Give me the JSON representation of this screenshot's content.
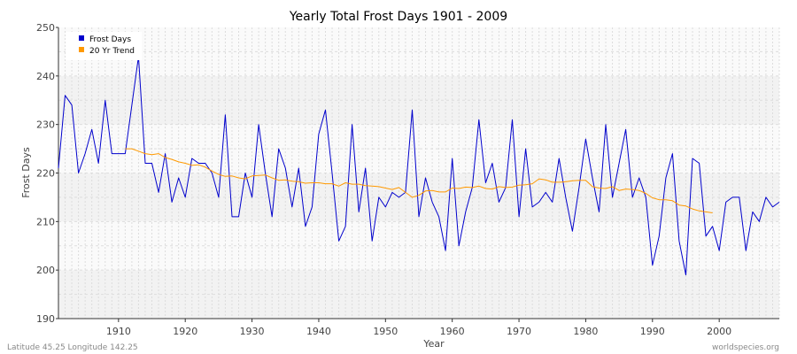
{
  "chart_data": {
    "type": "line",
    "title": "Yearly Total Frost Days 1901 - 2009",
    "xlabel": "Year",
    "ylabel": "Frost Days",
    "xlim": [
      1901,
      2009
    ],
    "ylim": [
      190,
      250
    ],
    "x_ticks": [
      1910,
      1920,
      1930,
      1940,
      1950,
      1960,
      1970,
      1980,
      1990,
      2000
    ],
    "y_ticks": [
      190,
      200,
      210,
      220,
      230,
      240,
      250
    ],
    "legend": {
      "placement": "top-left",
      "entries": [
        "Frost Days",
        "20 Yr Trend"
      ]
    },
    "series": [
      {
        "name": "Frost Days",
        "color": "#0000cc",
        "x": [
          1901,
          1902,
          1903,
          1904,
          1905,
          1906,
          1907,
          1908,
          1909,
          1910,
          1911,
          1912,
          1913,
          1914,
          1915,
          1916,
          1917,
          1918,
          1919,
          1920,
          1921,
          1922,
          1923,
          1924,
          1925,
          1926,
          1927,
          1928,
          1929,
          1930,
          1931,
          1932,
          1933,
          1934,
          1935,
          1936,
          1937,
          1938,
          1939,
          1940,
          1941,
          1942,
          1943,
          1944,
          1945,
          1946,
          1947,
          1948,
          1949,
          1950,
          1951,
          1952,
          1953,
          1954,
          1955,
          1956,
          1957,
          1958,
          1959,
          1960,
          1961,
          1962,
          1963,
          1964,
          1965,
          1966,
          1967,
          1968,
          1969,
          1970,
          1971,
          1972,
          1973,
          1974,
          1975,
          1976,
          1977,
          1978,
          1979,
          1980,
          1981,
          1982,
          1983,
          1984,
          1985,
          1986,
          1987,
          1988,
          1989,
          1990,
          1991,
          1992,
          1993,
          1994,
          1995,
          1996,
          1997,
          1998,
          1999,
          2000,
          2001,
          2002,
          2003,
          2004,
          2005,
          2006,
          2007,
          2008,
          2009
        ],
        "values": [
          221,
          236,
          234,
          220,
          224,
          229,
          222,
          235,
          224,
          224,
          224,
          234,
          244,
          222,
          222,
          216,
          224,
          214,
          219,
          215,
          223,
          222,
          222,
          220,
          215,
          232,
          211,
          211,
          220,
          215,
          230,
          220,
          211,
          225,
          221,
          213,
          221,
          209,
          213,
          228,
          233,
          220,
          206,
          209,
          230,
          212,
          221,
          206,
          215,
          213,
          216,
          215,
          216,
          233,
          211,
          219,
          214,
          211,
          204,
          223,
          205,
          212,
          217,
          231,
          218,
          222,
          214,
          217,
          231,
          211,
          225,
          213,
          214,
          216,
          214,
          223,
          215,
          208,
          217,
          227,
          219,
          212,
          230,
          215,
          222,
          229,
          215,
          219,
          215,
          201,
          207,
          219,
          224,
          206,
          199,
          223,
          222,
          207,
          209,
          204,
          214,
          215,
          215,
          204,
          212,
          210,
          215,
          213,
          214
        ]
      },
      {
        "name": "20 Yr Trend",
        "color": "#ff9900",
        "x": [
          1911,
          1912,
          1913,
          1914,
          1915,
          1916,
          1917,
          1918,
          1919,
          1920,
          1921,
          1922,
          1923,
          1924,
          1925,
          1926,
          1927,
          1928,
          1929,
          1930,
          1931,
          1932,
          1933,
          1934,
          1935,
          1936,
          1937,
          1938,
          1939,
          1940,
          1941,
          1942,
          1943,
          1944,
          1945,
          1946,
          1947,
          1948,
          1949,
          1950,
          1951,
          1952,
          1953,
          1954,
          1955,
          1956,
          1957,
          1958,
          1959,
          1960,
          1961,
          1962,
          1963,
          1964,
          1965,
          1966,
          1967,
          1968,
          1969,
          1970,
          1971,
          1972,
          1973,
          1974,
          1975,
          1976,
          1977,
          1978,
          1979,
          1980,
          1981,
          1982,
          1983,
          1984,
          1985,
          1986,
          1987,
          1988,
          1989,
          1990,
          1991,
          1992,
          1993,
          1994,
          1995,
          1996,
          1997,
          1998,
          1999
        ],
        "values": [
          225,
          225,
          224.5,
          224,
          223.8,
          224,
          223.2,
          222.8,
          222.3,
          222,
          221.6,
          221.7,
          221.2,
          220.4,
          219.7,
          219.3,
          219.4,
          219,
          218.8,
          219.4,
          219.5,
          219.6,
          219,
          218.5,
          218.6,
          218.3,
          218.2,
          217.9,
          218,
          218,
          217.8,
          217.8,
          217.3,
          218,
          217.7,
          217.7,
          217.4,
          217.3,
          217.2,
          216.9,
          216.6,
          217,
          216,
          215,
          215.4,
          216.3,
          216.4,
          216.1,
          216.1,
          216.9,
          216.8,
          217.1,
          217,
          217.3,
          216.8,
          216.7,
          217.2,
          217,
          217.1,
          217.5,
          217.6,
          217.8,
          218.8,
          218.6,
          218.1,
          218.1,
          218.2,
          218.4,
          218.5,
          218.5,
          217.2,
          216.9,
          216.8,
          217.2,
          216.4,
          216.7,
          216.6,
          216.4,
          215.8,
          214.9,
          214.5,
          214.5,
          214.3,
          213.4,
          213.2,
          212.6,
          212.2,
          212,
          211.8
        ]
      }
    ],
    "footer_left": "Latitude 45.25 Longitude 142.25",
    "footer_right": "worldspecies.org"
  }
}
